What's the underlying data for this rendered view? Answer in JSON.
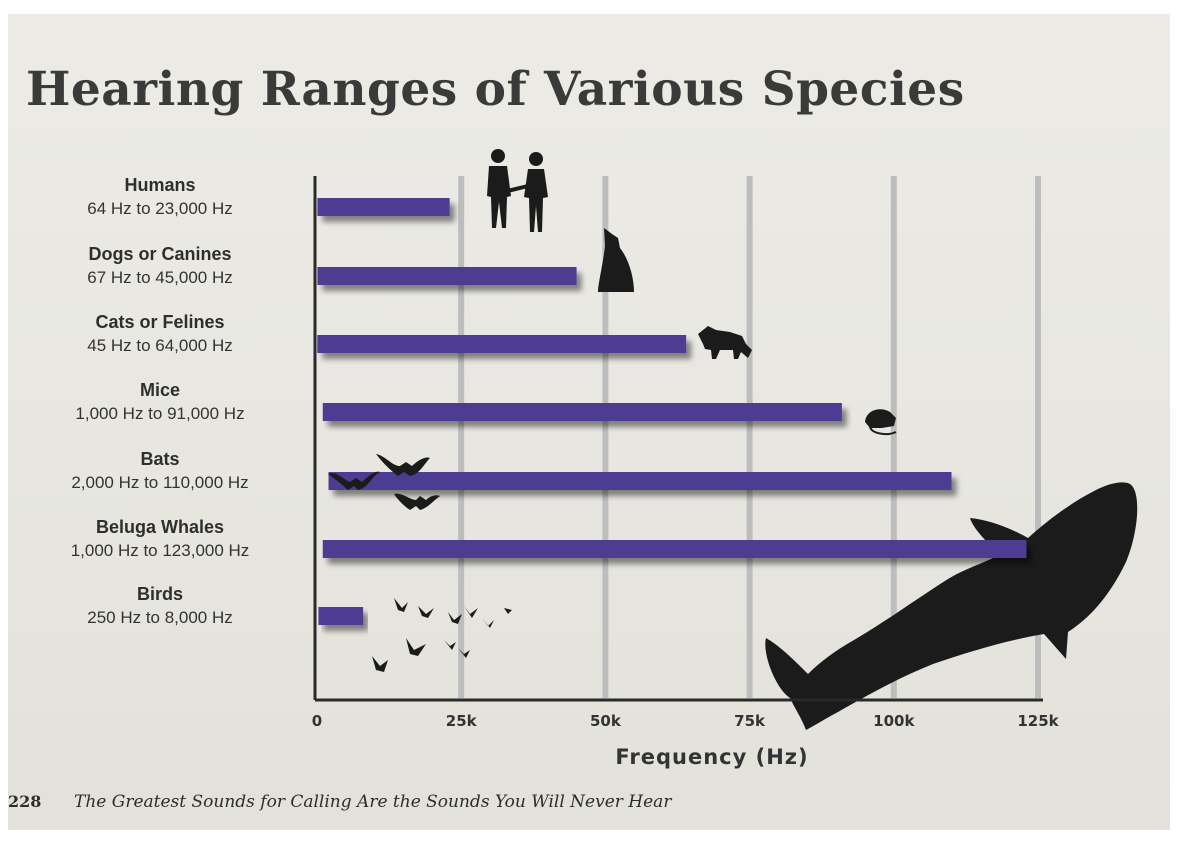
{
  "page": {
    "title": "Hearing Ranges of Various Species",
    "page_number": "228",
    "running_head": "The Greatest Sounds for Calling Are the Sounds You Will Never Hear"
  },
  "colors": {
    "bar": "#4e3c92",
    "grid": "#bdbdbd",
    "axis": "#2a2a2a",
    "silhouette": "#1b1b1b"
  },
  "chart_data": {
    "type": "bar",
    "orientation": "horizontal",
    "title": "Hearing Ranges of Various Species",
    "xlabel": "Frequency (Hz)",
    "ylabel": "",
    "xlim": [
      0,
      125000
    ],
    "xticks": [
      0,
      25000,
      50000,
      75000,
      100000,
      125000
    ],
    "xtick_labels": [
      "0",
      "25k",
      "50k",
      "75k",
      "100k",
      "125k"
    ],
    "grid": "vertical",
    "categories": [
      {
        "name": "Humans",
        "label": "64 Hz to 23,000 Hz",
        "min": 64,
        "max": 23000,
        "icon": "humans-silhouette-icon"
      },
      {
        "name": "Dogs or Canines",
        "label": "67 Hz to 45,000 Hz",
        "min": 67,
        "max": 45000,
        "icon": "howling-wolf-icon"
      },
      {
        "name": "Cats or Felines",
        "label": "45 Hz to 64,000 Hz",
        "min": 45,
        "max": 64000,
        "icon": "bobcat-icon"
      },
      {
        "name": "Mice",
        "label": "1,000 Hz to 91,000 Hz",
        "min": 1000,
        "max": 91000,
        "icon": "mouse-icon"
      },
      {
        "name": "Bats",
        "label": "2,000 Hz to 110,000 Hz",
        "min": 2000,
        "max": 110000,
        "icon": "bats-icon"
      },
      {
        "name": "Beluga Whales",
        "label": "1,000 Hz to 123,000 Hz",
        "min": 1000,
        "max": 123000,
        "icon": "beluga-whale-icon"
      },
      {
        "name": "Birds",
        "label": "250 Hz to 8,000 Hz",
        "min": 250,
        "max": 8000,
        "icon": "birds-flock-icon"
      }
    ]
  }
}
